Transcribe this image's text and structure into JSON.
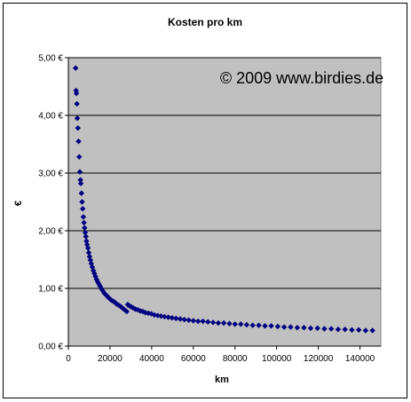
{
  "chart_data": {
    "type": "scatter",
    "title": "Kosten pro km",
    "xlabel": "km",
    "ylabel": "€",
    "watermark": "© 2009 www.birdies.de",
    "xlim": [
      0,
      150000
    ],
    "ylim": [
      0,
      5
    ],
    "x_ticks": [
      0,
      20000,
      40000,
      60000,
      80000,
      100000,
      120000,
      140000
    ],
    "x_tick_labels": [
      "0",
      "20000",
      "40000",
      "60000",
      "80000",
      "100000",
      "120000",
      "140000"
    ],
    "y_ticks": [
      0,
      1,
      2,
      3,
      4,
      5
    ],
    "y_tick_labels": [
      "0,00 €",
      "1,00 €",
      "2,00 €",
      "3,00 €",
      "4,00 €",
      "5,00 €"
    ],
    "grid": "horizontal",
    "legend": "none",
    "colors": {
      "plot_bg": "#c0c0c0",
      "marker": "#000080",
      "grid": "#000000"
    },
    "series": [
      {
        "values": [
          [
            3500,
            4.82
          ],
          [
            3700,
            4.43
          ],
          [
            3900,
            4.38
          ],
          [
            4100,
            4.2
          ],
          [
            4300,
            3.95
          ],
          [
            4600,
            3.78
          ],
          [
            4900,
            3.55
          ],
          [
            5200,
            3.28
          ],
          [
            5500,
            3.02
          ],
          [
            5800,
            2.88
          ],
          [
            6000,
            2.82
          ],
          [
            6300,
            2.65
          ],
          [
            6600,
            2.5
          ],
          [
            6900,
            2.38
          ],
          [
            7200,
            2.24
          ],
          [
            7500,
            2.14
          ],
          [
            7800,
            2.05
          ],
          [
            8100,
            1.97
          ],
          [
            8400,
            1.9
          ],
          [
            8700,
            1.82
          ],
          [
            9000,
            1.76
          ],
          [
            9400,
            1.7
          ],
          [
            9800,
            1.62
          ],
          [
            10200,
            1.55
          ],
          [
            10600,
            1.49
          ],
          [
            11000,
            1.43
          ],
          [
            11500,
            1.37
          ],
          [
            12000,
            1.31
          ],
          [
            12500,
            1.26
          ],
          [
            13000,
            1.21
          ],
          [
            13500,
            1.16
          ],
          [
            14000,
            1.12
          ],
          [
            14600,
            1.08
          ],
          [
            15200,
            1.04
          ],
          [
            15800,
            1.0
          ],
          [
            16500,
            0.96
          ],
          [
            17200,
            0.92
          ],
          [
            18000,
            0.89
          ],
          [
            18800,
            0.86
          ],
          [
            19600,
            0.83
          ],
          [
            20500,
            0.8
          ],
          [
            21400,
            0.78
          ],
          [
            22300,
            0.76
          ],
          [
            23200,
            0.73
          ],
          [
            24100,
            0.71
          ],
          [
            25000,
            0.69
          ],
          [
            26000,
            0.66
          ],
          [
            27000,
            0.63
          ],
          [
            28000,
            0.6
          ],
          [
            28500,
            0.72
          ],
          [
            29300,
            0.7
          ],
          [
            30200,
            0.68
          ],
          [
            31200,
            0.66
          ],
          [
            32200,
            0.64
          ],
          [
            33300,
            0.63
          ],
          [
            34500,
            0.61
          ],
          [
            35700,
            0.6
          ],
          [
            37000,
            0.58
          ],
          [
            38400,
            0.57
          ],
          [
            39800,
            0.56
          ],
          [
            41300,
            0.54
          ],
          [
            42900,
            0.53
          ],
          [
            44500,
            0.52
          ],
          [
            46200,
            0.51
          ],
          [
            48000,
            0.5
          ],
          [
            49800,
            0.49
          ],
          [
            51700,
            0.48
          ],
          [
            53700,
            0.47
          ],
          [
            55700,
            0.46
          ],
          [
            57800,
            0.45
          ],
          [
            60000,
            0.44
          ],
          [
            62300,
            0.43
          ],
          [
            64600,
            0.43
          ],
          [
            67000,
            0.42
          ],
          [
            69500,
            0.41
          ],
          [
            72000,
            0.4
          ],
          [
            74600,
            0.4
          ],
          [
            77300,
            0.39
          ],
          [
            80000,
            0.38
          ],
          [
            82800,
            0.38
          ],
          [
            85600,
            0.37
          ],
          [
            88500,
            0.36
          ],
          [
            91400,
            0.36
          ],
          [
            94400,
            0.35
          ],
          [
            97400,
            0.35
          ],
          [
            100500,
            0.34
          ],
          [
            103600,
            0.33
          ],
          [
            106700,
            0.33
          ],
          [
            109900,
            0.32
          ],
          [
            113100,
            0.32
          ],
          [
            116300,
            0.31
          ],
          [
            119600,
            0.31
          ],
          [
            122900,
            0.3
          ],
          [
            126200,
            0.3
          ],
          [
            129500,
            0.29
          ],
          [
            132800,
            0.29
          ],
          [
            136100,
            0.28
          ],
          [
            139400,
            0.28
          ],
          [
            142700,
            0.27
          ],
          [
            146000,
            0.27
          ]
        ]
      }
    ]
  }
}
